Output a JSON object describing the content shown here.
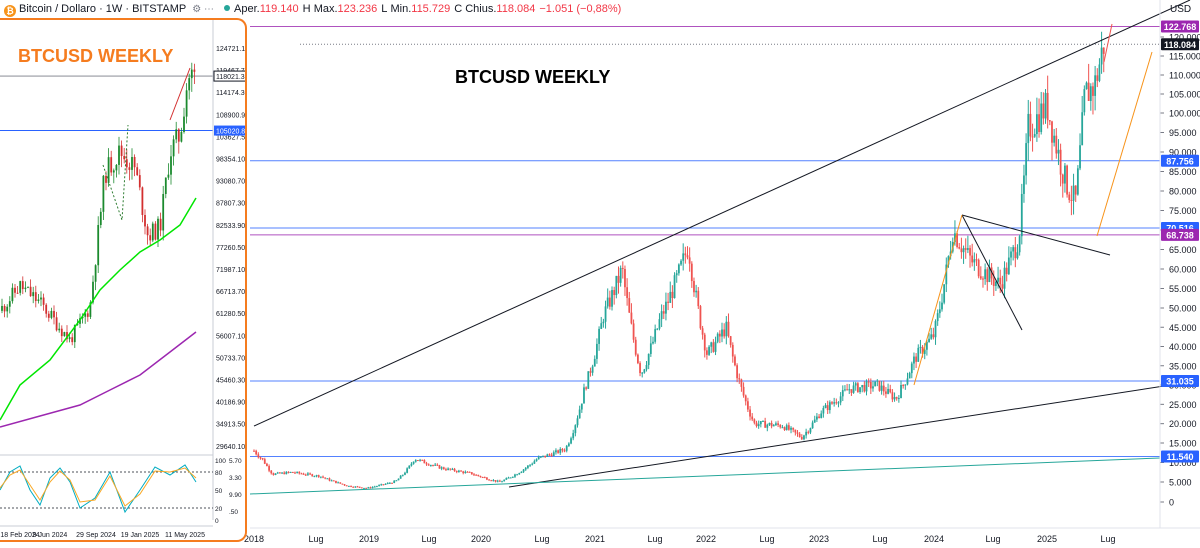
{
  "header": {
    "symbol": "Bitcoin / Dollaro · 1W · BITSTAMP",
    "open_label": "Aper.",
    "open": "119.140",
    "high_label": "H",
    "high_full_label": "Max.",
    "high": "123.236",
    "low_label": "L",
    "low_full_label": "Min.",
    "low": "115.729",
    "close_label": "C",
    "close_full_label": "Chius.",
    "close": "118.084",
    "change": "−1.051 (−0,88%)"
  },
  "chart_data": [
    {
      "type": "candlestick",
      "title": "BTCUSD WEEKLY",
      "currency": "USD",
      "scale": "log",
      "x_ticks": [
        "2018",
        "Lug",
        "2019",
        "Lug",
        "2020",
        "Lug",
        "2021",
        "Lug",
        "2022",
        "Lug",
        "2023",
        "Lug",
        "2024",
        "Lug",
        "2025",
        "Lug"
      ],
      "y_ticks": [
        "120.000",
        "115.000",
        "110.000",
        "105.000",
        "100.000",
        "95.000",
        "90.000",
        "85.000",
        "80.000",
        "75.000",
        "70.000",
        "65.000",
        "60.000",
        "55.000",
        "50.000",
        "45.000",
        "40.000",
        "35.000",
        "30.000",
        "25.000",
        "20.000",
        "15.000",
        "10.000",
        "5.000",
        "0"
      ],
      "price_tags": [
        {
          "label": "122.768",
          "value": 122768,
          "color": "#9c27b0"
        },
        {
          "label": "118.084",
          "value": 118084,
          "color": "#131722"
        },
        {
          "label": "87.756",
          "value": 87756,
          "color": "#2962ff"
        },
        {
          "label": "70.516",
          "value": 70516,
          "color": "#2962ff"
        },
        {
          "label": "68.738",
          "value": 68738,
          "color": "#9c27b0"
        },
        {
          "label": "31.035",
          "value": 31035,
          "color": "#2962ff"
        },
        {
          "label": "11.540",
          "value": 11540,
          "color": "#2962ff"
        }
      ],
      "closes": [
        {
          "date": "2018-01",
          "value": 13000
        },
        {
          "date": "2018-02",
          "value": 10500
        },
        {
          "date": "2018-03",
          "value": 7000
        },
        {
          "date": "2018-05",
          "value": 7500
        },
        {
          "date": "2018-08",
          "value": 6500
        },
        {
          "date": "2018-11",
          "value": 4000
        },
        {
          "date": "2019-01",
          "value": 3500
        },
        {
          "date": "2019-04",
          "value": 5200
        },
        {
          "date": "2019-06",
          "value": 11000
        },
        {
          "date": "2019-09",
          "value": 8500
        },
        {
          "date": "2019-12",
          "value": 7200
        },
        {
          "date": "2020-03",
          "value": 5000
        },
        {
          "date": "2020-07",
          "value": 11000
        },
        {
          "date": "2020-10",
          "value": 13500
        },
        {
          "date": "2020-12",
          "value": 29000
        },
        {
          "date": "2021-02",
          "value": 48000
        },
        {
          "date": "2021-04",
          "value": 60000
        },
        {
          "date": "2021-06",
          "value": 33000
        },
        {
          "date": "2021-08",
          "value": 47000
        },
        {
          "date": "2021-11",
          "value": 66000
        },
        {
          "date": "2022-01",
          "value": 38000
        },
        {
          "date": "2022-03",
          "value": 45000
        },
        {
          "date": "2022-06",
          "value": 20000
        },
        {
          "date": "2022-09",
          "value": 19500
        },
        {
          "date": "2022-11",
          "value": 16500
        },
        {
          "date": "2023-01",
          "value": 23000
        },
        {
          "date": "2023-04",
          "value": 29000
        },
        {
          "date": "2023-07",
          "value": 30000
        },
        {
          "date": "2023-09",
          "value": 26500
        },
        {
          "date": "2023-11",
          "value": 37000
        },
        {
          "date": "2024-01",
          "value": 43000
        },
        {
          "date": "2024-03",
          "value": 70000
        },
        {
          "date": "2024-05",
          "value": 62000
        },
        {
          "date": "2024-08",
          "value": 56000
        },
        {
          "date": "2024-10",
          "value": 68000
        },
        {
          "date": "2024-11",
          "value": 96000
        },
        {
          "date": "2025-01",
          "value": 102000
        },
        {
          "date": "2025-03",
          "value": 82000
        },
        {
          "date": "2025-04",
          "value": 77000
        },
        {
          "date": "2025-05",
          "value": 105000
        },
        {
          "date": "2025-06",
          "value": 107000
        },
        {
          "date": "2025-07",
          "value": 118084
        }
      ]
    },
    {
      "type": "candlestick",
      "title": "BTCUSD WEEKLY",
      "x_ticks": [
        "18 Feb 2024",
        "9 Jun 2024",
        "29 Sep 2024",
        "19 Jan 2025",
        "11 May 2025"
      ],
      "y_ticks": [
        "124721.10",
        "119467.70",
        "114174.30",
        "108900.90",
        "103627.50",
        "98354.10",
        "93080.70",
        "87807.30",
        "82533.90",
        "77260.50",
        "71987.10",
        "66713.70",
        "61280.50",
        "56007.10",
        "50733.70",
        "45460.30",
        "40186.90",
        "34913.50",
        "29640.10"
      ],
      "price_tags": [
        {
          "label": "118021.35",
          "value": 118021.35
        },
        {
          "label": "105020.80",
          "value": 105020.8
        }
      ],
      "oscillator_ticks": [
        "100",
        "80",
        "50",
        "20",
        "0"
      ],
      "oscillator_values": [
        "5.70",
        "3.30",
        "9.90",
        ".50"
      ]
    }
  ]
}
